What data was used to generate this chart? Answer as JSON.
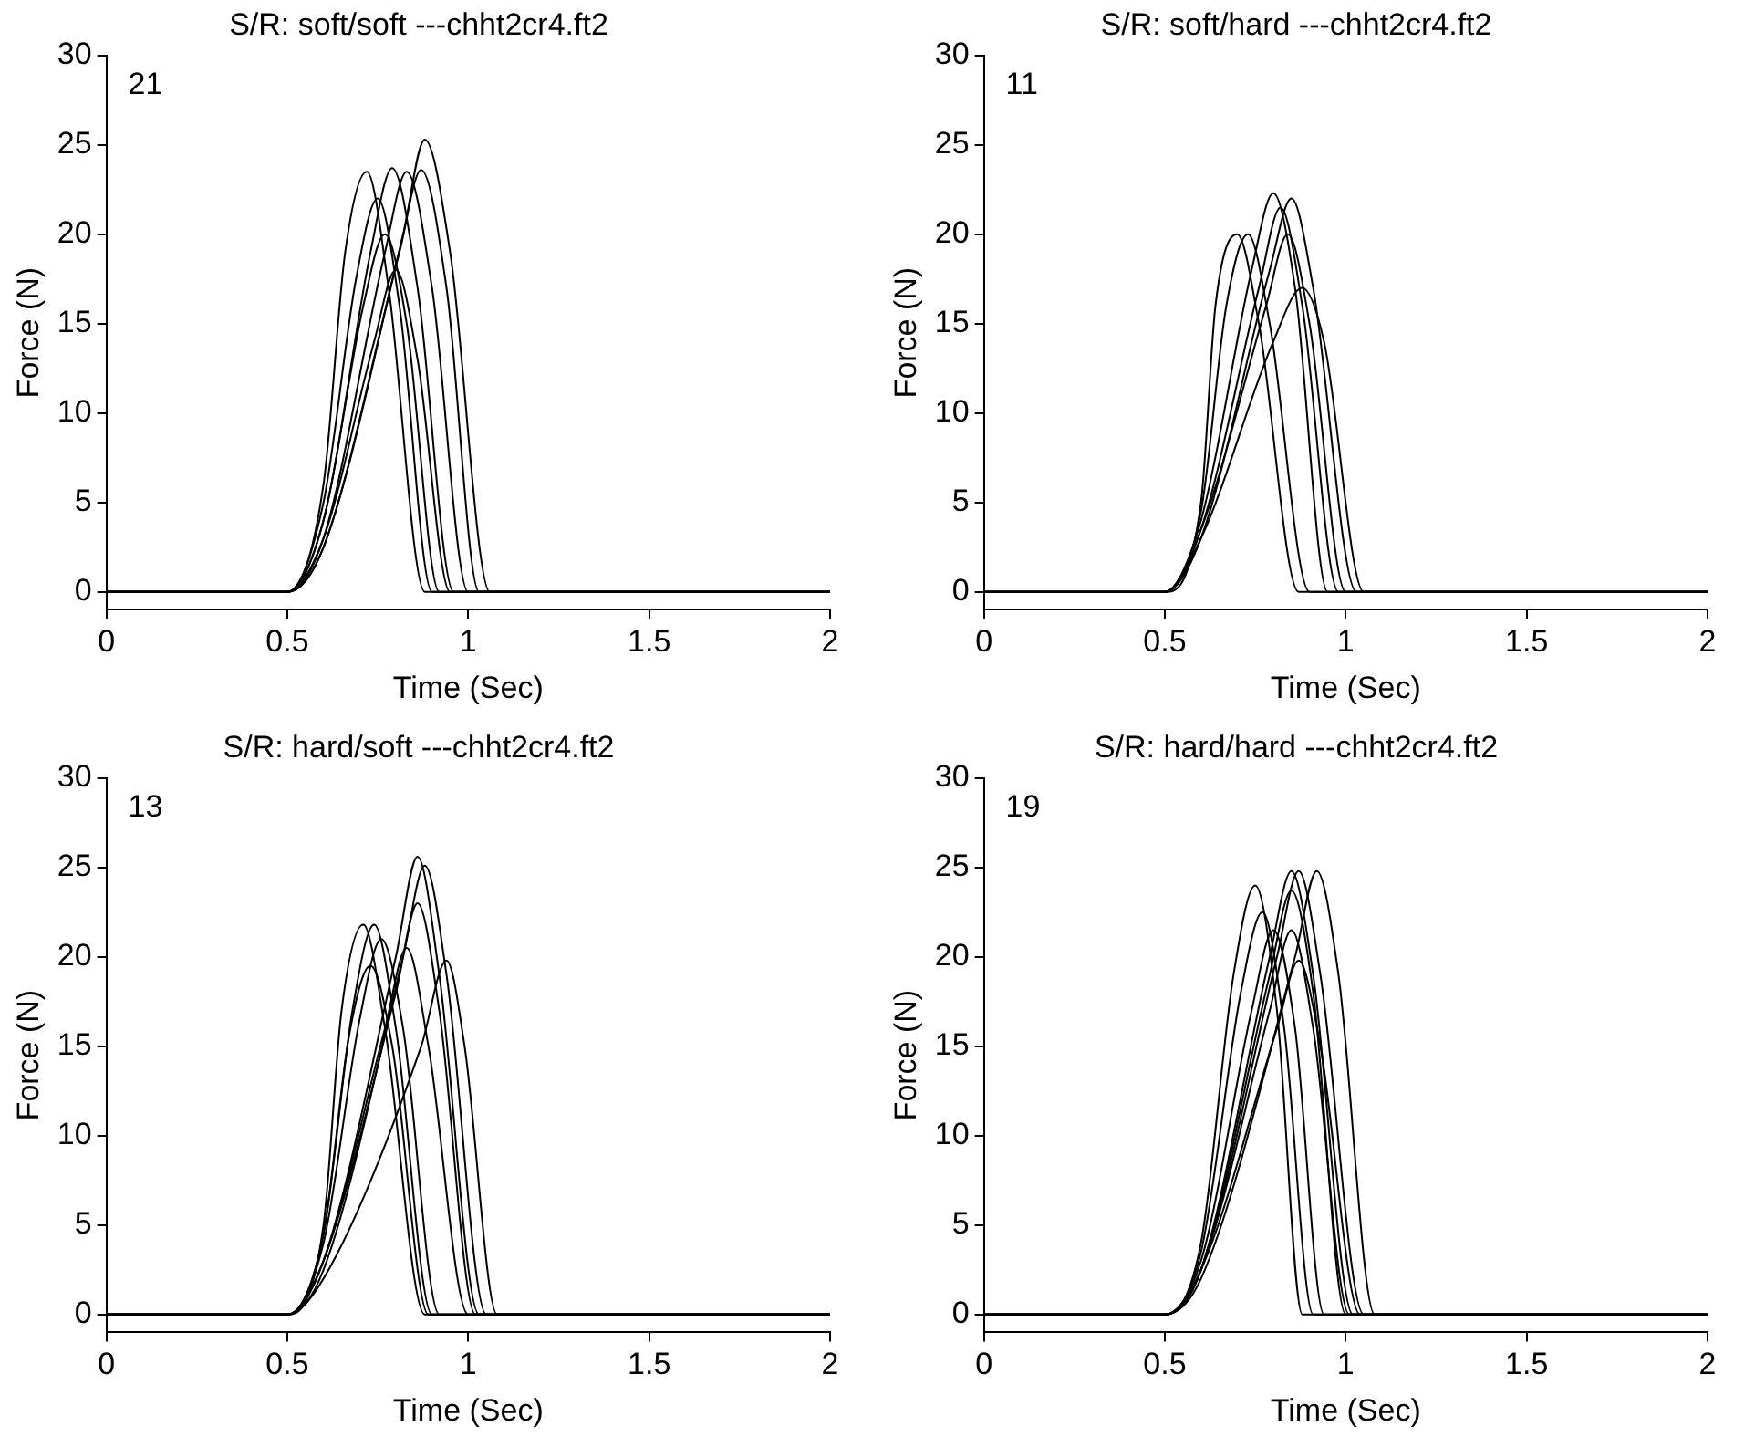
{
  "chart_data": [
    {
      "type": "line",
      "title": "S/R: soft/soft ---chht2cr4.ft2",
      "xlabel": "Time (Sec)",
      "ylabel": "Force (N)",
      "xlim": [
        0,
        2
      ],
      "xticks": [
        0,
        0.5,
        1,
        1.5,
        2
      ],
      "ylim": [
        -1,
        30
      ],
      "yticks": [
        0,
        5,
        10,
        15,
        20,
        25,
        30
      ],
      "annotations": [
        "21"
      ],
      "series": [
        {
          "color": "#000000",
          "x": [
            0,
            0.5,
            0.6,
            0.66,
            0.72,
            0.78,
            0.88,
            2
          ],
          "values": [
            0,
            0,
            6,
            19,
            23.5,
            17,
            0,
            0
          ]
        },
        {
          "color": "#000000",
          "x": [
            0,
            0.5,
            0.6,
            0.69,
            0.75,
            0.81,
            0.9,
            2
          ],
          "values": [
            0,
            0,
            5,
            17.5,
            22,
            16,
            0,
            0
          ]
        },
        {
          "color": "#000000",
          "x": [
            0,
            0.5,
            0.6,
            0.71,
            0.77,
            0.83,
            0.92,
            2
          ],
          "values": [
            0,
            0,
            4,
            16,
            20,
            15,
            0,
            0
          ]
        },
        {
          "color": "#000000",
          "x": [
            0,
            0.5,
            0.6,
            0.73,
            0.79,
            0.86,
            0.96,
            2
          ],
          "values": [
            0,
            0,
            4,
            19,
            23.7,
            17,
            0,
            0
          ]
        },
        {
          "color": "#000000",
          "x": [
            0,
            0.5,
            0.6,
            0.74,
            0.8,
            0.86,
            0.95,
            2
          ],
          "values": [
            0,
            0,
            3,
            14,
            18,
            13,
            0,
            0
          ]
        },
        {
          "color": "#000000",
          "x": [
            0,
            0.5,
            0.6,
            0.77,
            0.83,
            0.9,
            1,
            2
          ],
          "values": [
            0,
            0,
            3,
            19,
            23.5,
            17,
            0,
            0
          ]
        },
        {
          "color": "#000000",
          "x": [
            0,
            0.5,
            0.6,
            0.81,
            0.87,
            0.94,
            1.03,
            2
          ],
          "values": [
            0,
            0,
            2.5,
            19,
            23.6,
            17,
            0,
            0
          ]
        },
        {
          "color": "#000000",
          "x": [
            0,
            0.5,
            0.6,
            0.82,
            0.88,
            0.95,
            1.06,
            2
          ],
          "values": [
            0,
            0,
            2.5,
            20,
            25.3,
            19,
            0,
            0
          ]
        }
      ]
    },
    {
      "type": "line",
      "title": "S/R: soft/hard ---chht2cr4.ft2",
      "xlabel": "Time (Sec)",
      "ylabel": "Force (N)",
      "xlim": [
        0,
        2
      ],
      "xticks": [
        0,
        0.5,
        1,
        1.5,
        2
      ],
      "ylim": [
        -1,
        30
      ],
      "yticks": [
        0,
        5,
        10,
        15,
        20,
        25,
        30
      ],
      "annotations": [
        "11"
      ],
      "series": [
        {
          "color": "#000000",
          "x": [
            0,
            0.5,
            0.6,
            0.64,
            0.7,
            0.76,
            0.87,
            2
          ],
          "values": [
            0,
            0,
            5,
            16,
            20,
            15,
            0,
            0
          ]
        },
        {
          "color": "#000000",
          "x": [
            0,
            0.5,
            0.6,
            0.67,
            0.73,
            0.79,
            0.9,
            2
          ],
          "values": [
            0,
            0,
            4.5,
            16,
            20,
            15,
            0,
            0
          ]
        },
        {
          "color": "#000000",
          "x": [
            0,
            0.5,
            0.6,
            0.74,
            0.8,
            0.86,
            0.95,
            2
          ],
          "values": [
            0,
            0,
            4,
            18,
            22.3,
            17,
            0,
            0
          ]
        },
        {
          "color": "#000000",
          "x": [
            0,
            0.5,
            0.6,
            0.76,
            0.82,
            0.88,
            0.98,
            2
          ],
          "values": [
            0,
            0,
            3.5,
            17,
            21.5,
            16,
            0,
            0
          ]
        },
        {
          "color": "#000000",
          "x": [
            0,
            0.5,
            0.6,
            0.78,
            0.84,
            0.9,
            1,
            2
          ],
          "values": [
            0,
            0,
            3.5,
            16,
            20,
            15,
            0,
            0
          ]
        },
        {
          "color": "#000000",
          "x": [
            0,
            0.5,
            0.6,
            0.79,
            0.85,
            0.91,
            1.03,
            2
          ],
          "values": [
            0,
            0,
            3,
            18,
            22,
            17,
            0,
            0
          ]
        },
        {
          "color": "#000000",
          "x": [
            0,
            0.5,
            0.6,
            0.8,
            0.88,
            0.94,
            1.05,
            2
          ],
          "values": [
            0,
            0,
            3,
            14,
            17,
            14,
            0,
            0
          ]
        }
      ]
    },
    {
      "type": "line",
      "title": "S/R: hard/soft ---chht2cr4.ft2",
      "xlabel": "Time (Sec)",
      "ylabel": "Force (N)",
      "xlim": [
        0,
        2
      ],
      "xticks": [
        0,
        0.5,
        1,
        1.5,
        2
      ],
      "ylim": [
        -1,
        30
      ],
      "yticks": [
        0,
        5,
        10,
        15,
        20,
        25,
        30
      ],
      "annotations": [
        "13"
      ],
      "series": [
        {
          "color": "#000000",
          "x": [
            0,
            0.5,
            0.6,
            0.65,
            0.71,
            0.77,
            0.88,
            2
          ],
          "values": [
            0,
            0,
            5,
            17,
            21.8,
            16,
            0,
            0
          ]
        },
        {
          "color": "#000000",
          "x": [
            0,
            0.5,
            0.6,
            0.67,
            0.73,
            0.79,
            0.89,
            2
          ],
          "values": [
            0,
            0,
            4.5,
            15.5,
            19.5,
            15,
            0,
            0
          ]
        },
        {
          "color": "#000000",
          "x": [
            0,
            0.5,
            0.6,
            0.68,
            0.74,
            0.8,
            0.9,
            2
          ],
          "values": [
            0,
            0,
            4.5,
            17,
            21.8,
            16,
            0,
            0
          ]
        },
        {
          "color": "#000000",
          "x": [
            0,
            0.5,
            0.6,
            0.7,
            0.76,
            0.82,
            0.92,
            2
          ],
          "values": [
            0,
            0,
            4,
            16.5,
            21,
            16,
            0,
            0
          ]
        },
        {
          "color": "#000000",
          "x": [
            0,
            0.5,
            0.6,
            0.77,
            0.83,
            0.89,
            1,
            2
          ],
          "values": [
            0,
            0,
            3,
            16,
            20.5,
            15,
            0,
            0
          ]
        },
        {
          "color": "#000000",
          "x": [
            0,
            0.5,
            0.6,
            0.8,
            0.86,
            0.92,
            1.03,
            2
          ],
          "values": [
            0,
            0,
            3,
            20,
            25.6,
            19,
            0,
            0
          ]
        },
        {
          "color": "#000000",
          "x": [
            0,
            0.5,
            0.6,
            0.8,
            0.86,
            0.92,
            1.02,
            2
          ],
          "values": [
            0,
            0,
            3,
            18,
            23,
            17,
            0,
            0
          ]
        },
        {
          "color": "#000000",
          "x": [
            0,
            0.5,
            0.6,
            0.82,
            0.88,
            0.94,
            1.05,
            2
          ],
          "values": [
            0,
            0,
            2.5,
            20,
            25.1,
            19,
            0,
            0
          ]
        },
        {
          "color": "#000000",
          "x": [
            0,
            0.5,
            0.6,
            0.87,
            0.94,
            0.99,
            1.08,
            2
          ],
          "values": [
            0,
            0,
            2,
            15,
            19.8,
            15,
            0,
            0
          ]
        }
      ]
    },
    {
      "type": "line",
      "title": "S/R: hard/hard ---chht2cr4.ft2",
      "xlabel": "Time (Sec)",
      "ylabel": "Force (N)",
      "xlim": [
        0,
        2
      ],
      "xticks": [
        0,
        0.5,
        1,
        1.5,
        2
      ],
      "ylim": [
        -1,
        30
      ],
      "yticks": [
        0,
        5,
        10,
        15,
        20,
        25,
        30
      ],
      "annotations": [
        "19"
      ],
      "series": [
        {
          "color": "#000000",
          "x": [
            0,
            0.5,
            0.6,
            0.69,
            0.75,
            0.81,
            0.88,
            2
          ],
          "values": [
            0,
            0,
            4,
            19,
            24,
            17,
            0,
            0
          ]
        },
        {
          "color": "#000000",
          "x": [
            0,
            0.5,
            0.6,
            0.71,
            0.77,
            0.83,
            0.91,
            2
          ],
          "values": [
            0,
            0,
            3.5,
            18,
            22.5,
            16,
            0,
            0
          ]
        },
        {
          "color": "#000000",
          "x": [
            0,
            0.5,
            0.6,
            0.74,
            0.8,
            0.86,
            0.94,
            2
          ],
          "values": [
            0,
            0,
            3,
            17,
            21.5,
            16,
            0,
            0
          ]
        },
        {
          "color": "#000000",
          "x": [
            0,
            0.5,
            0.6,
            0.79,
            0.85,
            0.91,
            1,
            2
          ],
          "values": [
            0,
            0,
            2.5,
            19,
            23.7,
            18,
            0,
            0
          ]
        },
        {
          "color": "#000000",
          "x": [
            0,
            0.5,
            0.6,
            0.79,
            0.85,
            0.91,
            1.01,
            2
          ],
          "values": [
            0,
            0,
            2.5,
            17,
            21.5,
            16,
            0,
            0
          ]
        },
        {
          "color": "#000000",
          "x": [
            0,
            0.5,
            0.6,
            0.79,
            0.85,
            0.91,
            1.02,
            2
          ],
          "values": [
            0,
            0,
            2.5,
            20,
            24.8,
            19,
            0,
            0
          ]
        },
        {
          "color": "#000000",
          "x": [
            0,
            0.5,
            0.6,
            0.81,
            0.87,
            0.93,
            1.04,
            2
          ],
          "values": [
            0,
            0,
            2.5,
            16,
            19.8,
            15,
            0,
            0
          ]
        },
        {
          "color": "#000000",
          "x": [
            0,
            0.5,
            0.6,
            0.81,
            0.87,
            0.93,
            1.05,
            2
          ],
          "values": [
            0,
            0,
            2.5,
            20,
            24.8,
            19,
            0,
            0
          ]
        },
        {
          "color": "#000000",
          "x": [
            0,
            0.5,
            0.6,
            0.86,
            0.92,
            0.98,
            1.08,
            2
          ],
          "values": [
            0,
            0,
            2,
            20,
            24.8,
            19,
            0,
            0
          ]
        }
      ]
    }
  ]
}
